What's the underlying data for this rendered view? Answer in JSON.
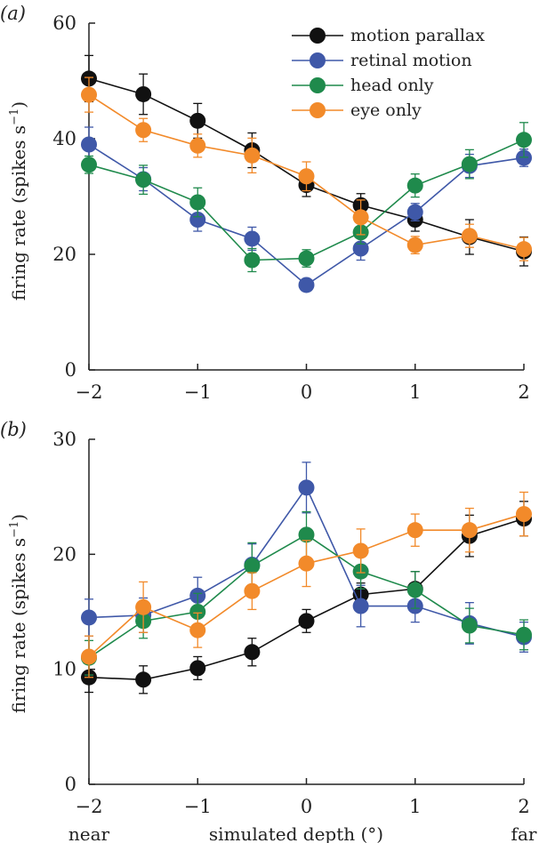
{
  "figure": {
    "xlabel": "simulated depth (°)",
    "x_end_labels": {
      "near": "near",
      "far": "far"
    }
  },
  "colors": {
    "motion parallax": "#111111",
    "retinal motion": "#3f58a8",
    "head only": "#1f8a4c",
    "eye only": "#f28a2a"
  },
  "chart_data": [
    {
      "type": "line",
      "panel": "(a)",
      "ylabel": "firing rate (spikes s",
      "ylabel_sup": "−1",
      "ylabel_close": ")",
      "ylim": [
        0,
        60
      ],
      "yticks": [
        0,
        20,
        40,
        60
      ],
      "xlim": [
        -2,
        2
      ],
      "xticks": [
        -2,
        -1,
        0,
        1,
        2
      ],
      "xtick_labels": [
        "−2",
        "−1",
        "0",
        "1",
        "2"
      ],
      "x": [
        -2,
        -1.5,
        -1,
        -0.5,
        0,
        0.5,
        1,
        1.5,
        2
      ],
      "legend_position": "top-right",
      "series": [
        {
          "name": "motion parallax",
          "values": [
            50.4,
            47.7,
            43.1,
            38.0,
            32.0,
            28.5,
            26.0,
            23.0,
            20.5
          ],
          "errors": [
            4.0,
            3.5,
            3.0,
            3.0,
            2.0,
            2.0,
            2.0,
            3.0,
            2.5
          ]
        },
        {
          "name": "retinal motion",
          "values": [
            39.0,
            33.0,
            26.0,
            22.7,
            14.7,
            21.0,
            27.3,
            35.3,
            36.7
          ],
          "errors": [
            3.0,
            2.0,
            2.0,
            2.0,
            0.0,
            2.0,
            1.5,
            2.0,
            1.5
          ]
        },
        {
          "name": "head only",
          "values": [
            35.5,
            32.9,
            29.0,
            19.0,
            19.3,
            23.8,
            31.9,
            35.6,
            39.8
          ],
          "errors": [
            1.5,
            2.5,
            2.5,
            2.0,
            1.5,
            2.0,
            2.0,
            2.5,
            3.0
          ]
        },
        {
          "name": "eye only",
          "values": [
            47.6,
            41.5,
            38.8,
            37.1,
            33.5,
            26.4,
            21.6,
            23.2,
            20.9
          ],
          "errors": [
            3.0,
            2.0,
            2.0,
            3.0,
            2.5,
            3.0,
            1.5,
            2.0,
            2.0
          ]
        }
      ]
    },
    {
      "type": "line",
      "panel": "(b)",
      "ylabel": "firing rate (spikes s",
      "ylabel_sup": "−1",
      "ylabel_close": ")",
      "ylim": [
        0,
        30
      ],
      "yticks": [
        0,
        10,
        20,
        30
      ],
      "xlim": [
        -2,
        2
      ],
      "xticks": [
        -2,
        -1,
        0,
        1,
        2
      ],
      "xtick_labels": [
        "−2",
        "−1",
        "0",
        "1",
        "2"
      ],
      "x": [
        -2,
        -1.5,
        -1,
        -0.5,
        0,
        0.5,
        1,
        1.5,
        2
      ],
      "series": [
        {
          "name": "motion parallax",
          "values": [
            9.3,
            9.1,
            10.1,
            11.5,
            14.2,
            16.5,
            17.0,
            21.6,
            23.1
          ],
          "errors": [
            1.3,
            1.2,
            1.0,
            1.2,
            1.0,
            1.0,
            1.5,
            1.8,
            1.5
          ]
        },
        {
          "name": "retinal motion",
          "values": [
            14.5,
            14.7,
            16.4,
            19.1,
            25.8,
            15.5,
            15.5,
            14.0,
            12.8
          ],
          "errors": [
            1.6,
            1.5,
            1.6,
            1.8,
            2.2,
            1.8,
            1.4,
            1.8,
            1.3
          ]
        },
        {
          "name": "head only",
          "values": [
            11.0,
            14.2,
            15.0,
            19.0,
            21.7,
            18.5,
            16.9,
            13.8,
            13.0
          ],
          "errors": [
            1.5,
            1.5,
            1.6,
            2.0,
            2.0,
            1.5,
            1.6,
            1.5,
            1.3
          ]
        },
        {
          "name": "eye only",
          "values": [
            11.1,
            15.4,
            13.4,
            16.8,
            19.2,
            20.3,
            22.1,
            22.1,
            23.5
          ],
          "errors": [
            1.8,
            2.2,
            1.5,
            1.6,
            2.0,
            1.9,
            1.4,
            1.9,
            1.9
          ]
        }
      ]
    }
  ]
}
